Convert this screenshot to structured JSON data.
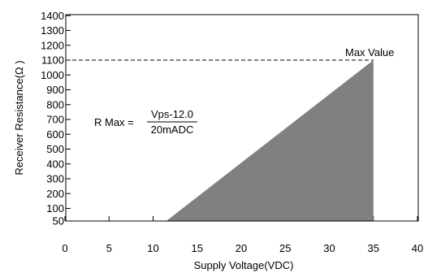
{
  "chart_data": {
    "type": "area",
    "title": "",
    "xlabel": "Supply Voltage(VDC)",
    "ylabel": "Receiver Resistance(Ω )",
    "xlim": [
      0,
      40
    ],
    "ylim": [
      50,
      1400
    ],
    "xticks": [
      0,
      5,
      10,
      15,
      20,
      25,
      30,
      35,
      40
    ],
    "yticks": [
      50,
      100,
      200,
      300,
      400,
      500,
      600,
      700,
      800,
      900,
      1000,
      1100,
      1200,
      1300,
      1400
    ],
    "grid": false,
    "series": [
      {
        "x": [
          11.5,
          35,
          35
        ],
        "y": [
          50,
          1100,
          50
        ],
        "color": "#808080"
      }
    ],
    "reference_line": {
      "y": 1100,
      "x_end": 35,
      "style": "dashed"
    },
    "annotations": {
      "max_value_label": "Max Value",
      "formula_prefix": "R Max =",
      "formula_numerator": "Vps-12.0",
      "formula_denominator": "20mADC"
    }
  }
}
